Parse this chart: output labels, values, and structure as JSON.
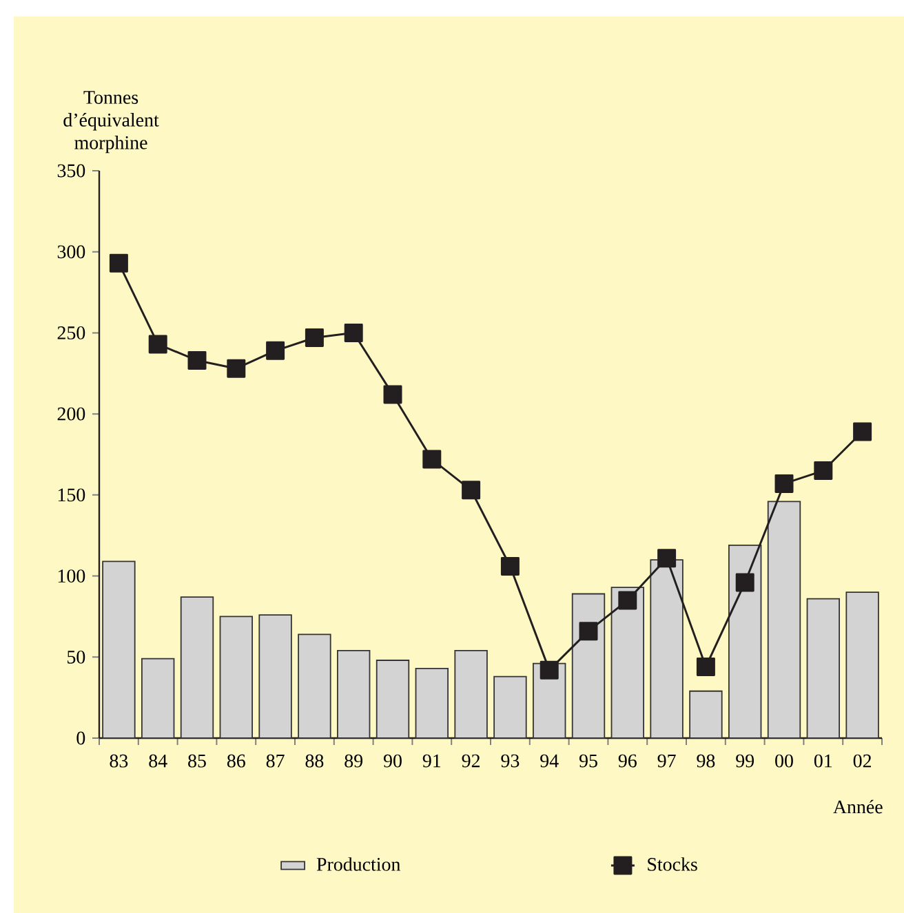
{
  "chart_data": {
    "type": "bar",
    "ylabel": "Tonnes d’équivalent morphine",
    "xlabel": "Année",
    "categories": [
      "83",
      "84",
      "85",
      "86",
      "87",
      "88",
      "89",
      "90",
      "91",
      "92",
      "93",
      "94",
      "95",
      "96",
      "97",
      "98",
      "99",
      "00",
      "01",
      "02"
    ],
    "series": [
      {
        "name": "Production",
        "color": "#d3d3d3",
        "values": [
          109,
          49,
          87,
          75,
          76,
          64,
          54,
          48,
          43,
          54,
          38,
          46,
          89,
          93,
          110,
          29,
          119,
          146,
          86,
          90
        ]
      },
      {
        "name": "Stocks",
        "type": "line",
        "color": "#231f20",
        "marker": "square",
        "line_style": "solid",
        "values": [
          293,
          243,
          233,
          228,
          239,
          247,
          250,
          212,
          172,
          153,
          106,
          42,
          66,
          85,
          111,
          44,
          96,
          157,
          165,
          189
        ]
      }
    ],
    "ylim": [
      0,
      350
    ],
    "yticks": [
      0,
      50,
      100,
      150,
      200,
      250,
      300,
      350
    ],
    "grid": false,
    "legend": "bottom"
  }
}
